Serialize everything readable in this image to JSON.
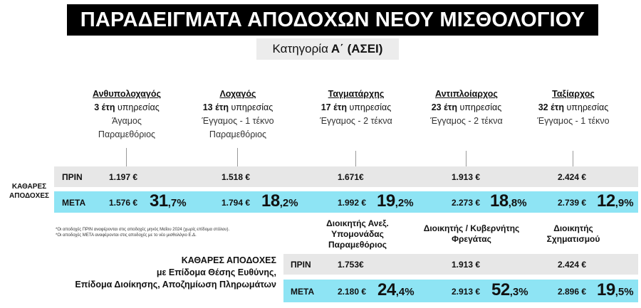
{
  "header": {
    "title": "ΠΑΡΑΔΕΙΓΜΑΤΑ ΑΠΟΔΟΧΩΝ ΝΕΟΥ ΜΙΣΘΟΛΟΓΙΟΥ",
    "subtitle_prefix": "Κατηγορία",
    "subtitle_bold": "Α΄ (ΑΣΕΙ)"
  },
  "columns": [
    {
      "rank": "Ανθυπολοχαγός",
      "years_num": "3 έτη",
      "years_text": "υπηρεσίας",
      "line1": "Άγαμος",
      "line2": "Παραμεθόριος"
    },
    {
      "rank": "Λοχαγός",
      "years_num": "13 έτη",
      "years_text": "υπηρεσίας",
      "line1": "Έγγαμος - 1 τέκνο",
      "line2": "Παραμεθόριος"
    },
    {
      "rank": "Ταγματάρχης",
      "years_num": "17 έτη",
      "years_text": "υπηρεσίας",
      "line1": "Έγγαμος - 2 τέκνα",
      "line2": ""
    },
    {
      "rank": "Αντιπλοίαρχος",
      "years_num": "23 έτη",
      "years_text": "υπηρεσίας",
      "line1": "Έγγαμος - 2 τέκνα",
      "line2": ""
    },
    {
      "rank": "Ταξίαρχος",
      "years_num": "32 έτη",
      "years_text": "υπηρεσίας",
      "line1": "Έγγαμος - 1 τέκνο",
      "line2": ""
    }
  ],
  "net": {
    "label_line1": "ΚΑΘΑΡΕΣ",
    "label_line2": "ΑΠΟΔΟΧΕΣ",
    "before_label": "ΠΡΙΝ",
    "after_label": "ΜΕΤΑ",
    "before": [
      "1.197 €",
      "1.518 €",
      "1.671€",
      "1.913 €",
      "2.424 €"
    ],
    "after": [
      "1.576 €",
      "1.794 €",
      "1.992 €",
      "2.273 €",
      "2.739 €"
    ],
    "pct_int": [
      "31",
      "18",
      "19",
      "18",
      "12"
    ],
    "pct_dec": [
      ",7%",
      ",2%",
      ",2%",
      ",8%",
      ",9%"
    ]
  },
  "notes": {
    "line1": "*Οι αποδοχές ΠΡΙΝ αναφέρονται στις αποδοχές μηνός Μαΐου 2024 (χωρίς επίδομα στόλου).",
    "line2": "*Οι αποδοχές ΜΕΤΑ αναφέρονται στις αποδοχές με το νέο μισθολόγιο Ε.Δ."
  },
  "commands": {
    "c1": {
      "line1": "Διοικητής Ανεξ.",
      "line2": "Υπομονάδας",
      "line3": "Παραμεθόριος"
    },
    "c2": {
      "line1": "Διοικητής / Κυβερνήτης",
      "line2": "Φρεγάτας"
    },
    "c3": {
      "line1": "Διοικητής",
      "line2": "Σχηματισμού"
    }
  },
  "net2": {
    "title_line1": "ΚΑΘΑΡΕΣ ΑΠΟΔΟΧΕΣ",
    "title_line2": "με Επίδομα Θέσης Ευθύνης,",
    "title_line3": "Επίδομα Διοίκησης, Αποζημίωση Πληρωμάτων",
    "before_label": "ΠΡΙΝ",
    "after_label": "ΜΕΤΑ",
    "before": [
      "1.753€",
      "1.913 €",
      "2.424 €"
    ],
    "after": [
      "2.180 €",
      "2.913 €",
      "2.896 €"
    ],
    "pct_int": [
      "24",
      "52",
      "19"
    ],
    "pct_dec": [
      ",4%",
      ",3%",
      ",5%"
    ]
  },
  "colors": {
    "band_before": "#e7e7e7",
    "band_after": "#8ee4f4",
    "title_bg": "#000000"
  }
}
